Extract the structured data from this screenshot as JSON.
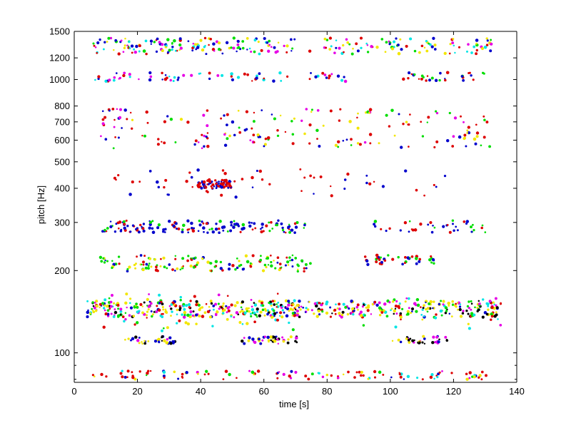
{
  "chart_data": {
    "type": "scatter",
    "title": "",
    "xlabel": "time [s]",
    "ylabel": "pitch [Hz]",
    "xlim": [
      0,
      140
    ],
    "ylim": [
      78,
      1500
    ],
    "yscale": "log",
    "grid": false,
    "legend": "none",
    "x_ticks": [
      0,
      20,
      40,
      60,
      80,
      100,
      120,
      140
    ],
    "x_tick_labels": [
      "0",
      "20",
      "40",
      "60",
      "80",
      "100",
      "120",
      "140"
    ],
    "y_ticks": [
      100,
      200,
      300,
      400,
      500,
      600,
      700,
      800,
      1000,
      1200,
      1500
    ],
    "y_tick_labels": [
      "100",
      "200",
      "300",
      "400",
      "500",
      "600",
      "700",
      "800",
      "1000",
      "1200",
      "1500"
    ],
    "y_minor_ticks": [
      80,
      90
    ],
    "colors": {
      "red": "#dd0000",
      "blue": "#0000cc",
      "green": "#00dd00",
      "yellow": "#f2e600",
      "cyan": "#00e5e5",
      "magenta": "#e600e6",
      "black": "#000000"
    },
    "clusters": [
      {
        "x0": 6,
        "x1": 70,
        "y0": 1240,
        "y1": 1420,
        "n": 140,
        "colors": [
          "red",
          "blue",
          "green",
          "magenta",
          "cyan",
          "yellow"
        ]
      },
      {
        "x0": 74,
        "x1": 132,
        "y0": 1240,
        "y1": 1420,
        "n": 90,
        "colors": [
          "red",
          "blue",
          "green",
          "magenta",
          "cyan",
          "yellow"
        ]
      },
      {
        "x0": 6,
        "x1": 86,
        "y0": 985,
        "y1": 1060,
        "n": 70,
        "colors": [
          "red",
          "blue",
          "magenta",
          "cyan"
        ]
      },
      {
        "x0": 104,
        "x1": 130,
        "y0": 985,
        "y1": 1060,
        "n": 30,
        "colors": [
          "red",
          "blue",
          "green"
        ]
      },
      {
        "x0": 8,
        "x1": 132,
        "y0": 560,
        "y1": 780,
        "n": 180,
        "colors": [
          "red",
          "red",
          "red",
          "blue",
          "green",
          "yellow",
          "magenta"
        ]
      },
      {
        "x0": 8,
        "x1": 120,
        "y0": 370,
        "y1": 470,
        "n": 60,
        "colors": [
          "red",
          "red",
          "blue"
        ]
      },
      {
        "x0": 39,
        "x1": 50,
        "y0": 400,
        "y1": 430,
        "n": 70,
        "colors": [
          "red",
          "red",
          "blue"
        ]
      },
      {
        "x0": 8,
        "x1": 74,
        "y0": 275,
        "y1": 305,
        "n": 150,
        "colors": [
          "blue",
          "blue",
          "red",
          "green"
        ]
      },
      {
        "x0": 93,
        "x1": 132,
        "y0": 275,
        "y1": 305,
        "n": 40,
        "colors": [
          "blue",
          "red",
          "green"
        ]
      },
      {
        "x0": 8,
        "x1": 75,
        "y0": 198,
        "y1": 228,
        "n": 150,
        "colors": [
          "blue",
          "green",
          "green",
          "yellow",
          "red"
        ]
      },
      {
        "x0": 92,
        "x1": 114,
        "y0": 210,
        "y1": 228,
        "n": 40,
        "colors": [
          "blue",
          "green",
          "red"
        ]
      },
      {
        "x0": 4,
        "x1": 135,
        "y0": 135,
        "y1": 155,
        "n": 500,
        "colors": [
          "green",
          "yellow",
          "yellow",
          "cyan",
          "magenta",
          "blue",
          "red",
          "black"
        ]
      },
      {
        "x0": 4,
        "x1": 135,
        "y0": 120,
        "y1": 165,
        "n": 110,
        "colors": [
          "yellow",
          "magenta",
          "cyan",
          "green",
          "red"
        ]
      },
      {
        "x0": 16,
        "x1": 32,
        "y0": 108,
        "y1": 115,
        "n": 40,
        "colors": [
          "yellow",
          "black",
          "blue",
          "magenta"
        ]
      },
      {
        "x0": 53,
        "x1": 71,
        "y0": 108,
        "y1": 115,
        "n": 45,
        "colors": [
          "yellow",
          "black",
          "blue",
          "magenta"
        ]
      },
      {
        "x0": 100,
        "x1": 118,
        "y0": 108,
        "y1": 115,
        "n": 35,
        "colors": [
          "yellow",
          "black",
          "blue",
          "magenta"
        ]
      },
      {
        "x0": 5,
        "x1": 132,
        "y0": 80,
        "y1": 86,
        "n": 110,
        "colors": [
          "red",
          "red",
          "red",
          "cyan",
          "yellow",
          "blue",
          "magenta",
          "green"
        ]
      }
    ]
  }
}
